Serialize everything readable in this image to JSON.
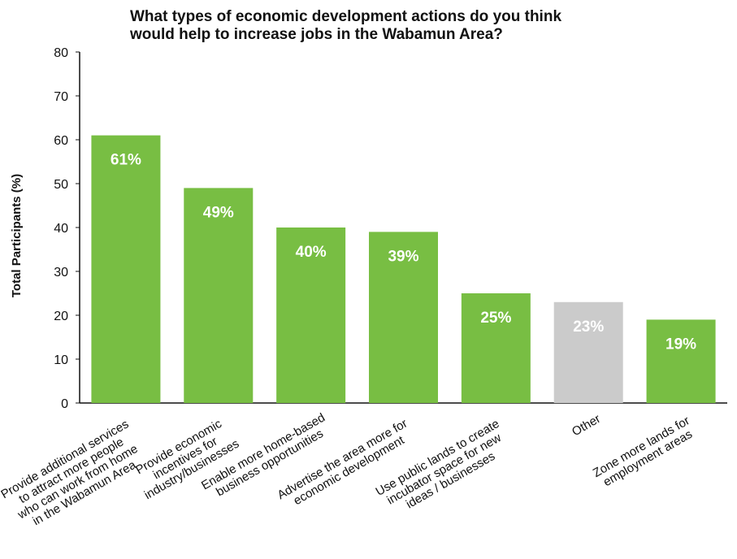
{
  "chart_data": {
    "type": "bar",
    "title_lines": [
      "What types of economic development actions do you think",
      "would help to increase jobs in the Wabamun Area?"
    ],
    "ylabel": "Total Participants (%)",
    "xlabel": "",
    "ylim": [
      0,
      80
    ],
    "yticks": [
      0,
      10,
      20,
      30,
      40,
      50,
      60,
      70,
      80
    ],
    "grid": false,
    "categories": [
      [
        "Provide additional services",
        "to attract more people",
        "who can work from home",
        "in the Wabamun Area"
      ],
      [
        "Provide economic",
        "incentives for",
        "industry/businesses"
      ],
      [
        "Enable more home-based",
        "business opportunities"
      ],
      [
        "Advertise the area more for",
        "economic development"
      ],
      [
        "Use public lands to create",
        "incubator space for new",
        "ideas / businesses"
      ],
      [
        "Other"
      ],
      [
        "Zone more lands for",
        "employment areas"
      ]
    ],
    "values": [
      61,
      49,
      40,
      39,
      25,
      23,
      19
    ],
    "data_labels": [
      "61%",
      "49%",
      "40%",
      "39%",
      "25%",
      "23%",
      "19%"
    ],
    "bar_colors": [
      "#78BE43",
      "#78BE43",
      "#78BE43",
      "#78BE43",
      "#78BE43",
      "#CBCBCB",
      "#78BE43"
    ]
  }
}
